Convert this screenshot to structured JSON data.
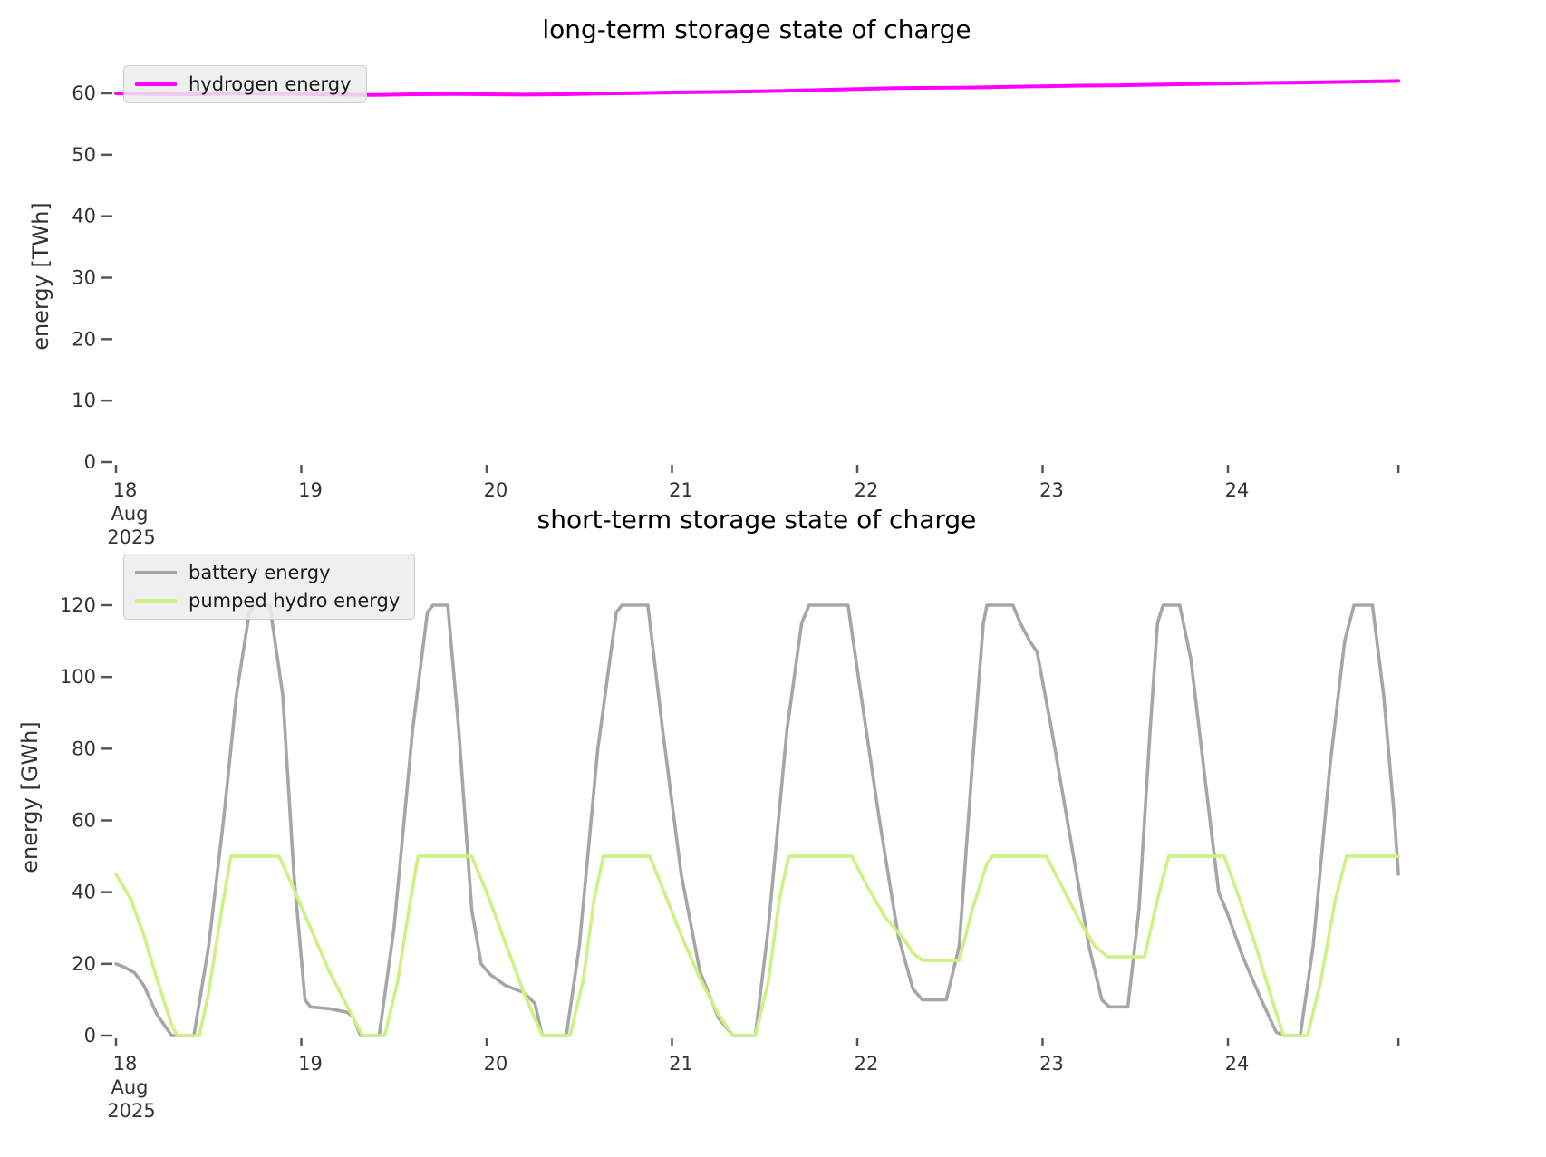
{
  "figure": {
    "background": "#ffffff"
  },
  "colors": {
    "hydrogen": "#ff00ff",
    "battery": "#a6a6a6",
    "pumped_hydro": "#cdf284",
    "tick_text": "#333333",
    "tick_mark": "#555555",
    "legend_background": "#ececec",
    "title_text": "#000000"
  },
  "chart_data": [
    {
      "type": "line",
      "title": "long-term storage state of charge",
      "ylabel": "energy [TWh]",
      "xlabel": "",
      "x_range": [
        18,
        24.92
      ],
      "xtick_days": [
        18,
        19,
        20,
        21,
        22,
        23,
        24
      ],
      "xtick_labels": [
        "18",
        "19",
        "20",
        "21",
        "22",
        "23",
        "24"
      ],
      "x_first_tick_sublabels": [
        "Aug",
        "2025"
      ],
      "x_end_tick_day": 24.92,
      "ylim": [
        0,
        66
      ],
      "ytick_values": [
        0,
        10,
        20,
        30,
        40,
        50,
        60
      ],
      "ytick_labels": [
        "0",
        "10",
        "20",
        "30",
        "40",
        "50",
        "60"
      ],
      "grid": false,
      "legend_position": "upper left",
      "legend": [
        {
          "label": "hydrogen energy",
          "color": "#ff00ff"
        }
      ],
      "series": [
        {
          "name": "hydrogen energy",
          "color": "#ff00ff",
          "x": [
            18.0,
            18.2,
            18.4,
            18.6,
            18.8,
            19.0,
            19.2,
            19.4,
            19.6,
            19.8,
            20.0,
            20.2,
            20.4,
            20.6,
            20.8,
            21.0,
            21.2,
            21.4,
            21.6,
            21.8,
            22.0,
            22.2,
            22.4,
            22.6,
            22.8,
            23.0,
            23.2,
            23.4,
            23.6,
            23.8,
            24.0,
            24.2,
            24.4,
            24.6,
            24.8,
            24.92
          ],
          "y": [
            60.0,
            59.9,
            59.85,
            59.95,
            59.95,
            59.9,
            59.8,
            59.75,
            59.85,
            59.9,
            59.85,
            59.8,
            59.85,
            59.95,
            60.05,
            60.15,
            60.2,
            60.3,
            60.4,
            60.55,
            60.7,
            60.85,
            60.9,
            60.95,
            61.05,
            61.15,
            61.25,
            61.3,
            61.4,
            61.5,
            61.6,
            61.7,
            61.75,
            61.85,
            61.95,
            62.0
          ]
        }
      ]
    },
    {
      "type": "line",
      "title": "short-term storage state of charge",
      "ylabel": "energy [GWh]",
      "xlabel": "",
      "x_range": [
        18,
        24.92
      ],
      "xtick_days": [
        18,
        19,
        20,
        21,
        22,
        23,
        24
      ],
      "xtick_labels": [
        "18",
        "19",
        "20",
        "21",
        "22",
        "23",
        "24"
      ],
      "x_first_tick_sublabels": [
        "Aug",
        "2025"
      ],
      "x_end_tick_day": 24.92,
      "ylim": [
        0,
        124
      ],
      "ytick_values": [
        0,
        20,
        40,
        60,
        80,
        100,
        120
      ],
      "ytick_labels": [
        "0",
        "20",
        "40",
        "60",
        "80",
        "100",
        "120"
      ],
      "grid": false,
      "legend_position": "upper left",
      "legend": [
        {
          "label": "battery energy",
          "color": "#a6a6a6"
        },
        {
          "label": "pumped hydro energy",
          "color": "#cdf284"
        }
      ],
      "series": [
        {
          "name": "battery energy",
          "color": "#a6a6a6",
          "x": [
            18.0,
            18.05,
            18.1,
            18.15,
            18.22,
            18.3,
            18.42,
            18.5,
            18.58,
            18.65,
            18.72,
            18.75,
            18.83,
            18.9,
            18.96,
            19.02,
            19.05,
            19.15,
            19.25,
            19.28,
            19.32,
            19.42,
            19.5,
            19.6,
            19.68,
            19.71,
            19.79,
            19.85,
            19.92,
            19.97,
            20.02,
            20.1,
            20.2,
            20.26,
            20.3,
            20.43,
            20.5,
            20.6,
            20.7,
            20.73,
            20.87,
            20.95,
            21.05,
            21.15,
            21.25,
            21.33,
            21.45,
            21.52,
            21.62,
            21.7,
            21.74,
            21.95,
            22.02,
            22.12,
            22.22,
            22.3,
            22.35,
            22.48,
            22.55,
            22.62,
            22.68,
            22.7,
            22.84,
            22.88,
            22.93,
            22.97,
            23.05,
            23.15,
            23.25,
            23.32,
            23.36,
            23.46,
            23.52,
            23.58,
            23.62,
            23.65,
            23.74,
            23.8,
            23.88,
            23.95,
            23.99,
            24.08,
            24.18,
            24.26,
            24.3,
            24.39,
            24.46,
            24.55,
            24.63,
            24.68,
            24.78,
            24.84,
            24.9,
            24.92
          ],
          "y": [
            20,
            19,
            17.5,
            14,
            6,
            0,
            0,
            25,
            60,
            95,
            118,
            120,
            120,
            95,
            45,
            10,
            8,
            7.5,
            6.5,
            5,
            0,
            0,
            30,
            85,
            118,
            120,
            120,
            85,
            35,
            20,
            17,
            14,
            12,
            9,
            0,
            0,
            25,
            80,
            118,
            120,
            120,
            85,
            45,
            18,
            5,
            0,
            0,
            30,
            85,
            115,
            120,
            120,
            95,
            60,
            28,
            13,
            10,
            10,
            25,
            75,
            115,
            120,
            120,
            115,
            110,
            107,
            85,
            55,
            25,
            10,
            8,
            8,
            35,
            85,
            115,
            120,
            120,
            105,
            70,
            40,
            35,
            22,
            10,
            1,
            0,
            0,
            25,
            75,
            110,
            120,
            120,
            95,
            60,
            45
          ]
        },
        {
          "name": "pumped hydro energy",
          "color": "#cdf284",
          "x": [
            18.0,
            18.08,
            18.15,
            18.22,
            18.3,
            18.33,
            18.45,
            18.5,
            18.57,
            18.62,
            18.88,
            18.95,
            19.05,
            19.15,
            19.25,
            19.33,
            19.45,
            19.52,
            19.58,
            19.63,
            19.92,
            20.0,
            20.1,
            20.2,
            20.3,
            20.45,
            20.52,
            20.58,
            20.63,
            20.88,
            20.95,
            21.05,
            21.15,
            21.25,
            21.33,
            21.45,
            21.52,
            21.58,
            21.63,
            21.97,
            22.05,
            22.15,
            22.25,
            22.3,
            22.35,
            22.55,
            22.62,
            22.7,
            22.73,
            23.02,
            23.1,
            23.2,
            23.28,
            23.35,
            23.55,
            23.62,
            23.68,
            23.98,
            24.05,
            24.15,
            24.25,
            24.3,
            24.43,
            24.5,
            24.58,
            24.64,
            24.92
          ],
          "y": [
            45,
            38,
            28,
            16,
            3,
            0,
            0,
            12,
            35,
            50,
            50,
            42,
            30,
            18,
            8,
            0,
            0,
            15,
            35,
            50,
            50,
            40,
            26,
            12,
            0,
            0,
            15,
            38,
            50,
            50,
            41,
            28,
            16,
            6,
            0,
            0,
            15,
            38,
            50,
            50,
            42,
            33,
            27,
            23,
            21,
            21,
            35,
            48,
            50,
            50,
            42,
            32,
            25,
            22,
            22,
            38,
            50,
            50,
            40,
            25,
            8,
            0,
            0,
            15,
            38,
            50,
            50
          ]
        }
      ]
    }
  ]
}
